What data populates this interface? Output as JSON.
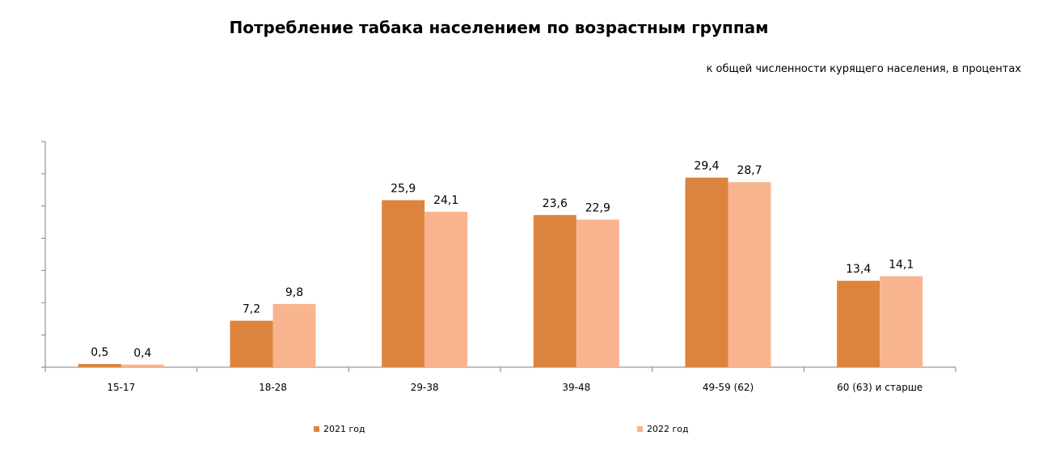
{
  "title": "Потребление табака населением по возрастным группам",
  "subtitle": "к общей численности курящего населения, в процентах",
  "colors": {
    "series_2021": "#DC843E",
    "series_2022": "#F8B48F",
    "axis": "#808080"
  },
  "chart_data": {
    "type": "bar",
    "title": "Потребление табака населением по возрастным группам",
    "subtitle": "к общей численности курящего населения, в процентах",
    "categories": [
      "15-17",
      "18-28",
      "29-38",
      "39-48",
      "49-59 (62)",
      "60 (63) и старше"
    ],
    "series": [
      {
        "name": "2021 год",
        "values": [
          0.5,
          7.2,
          25.9,
          23.6,
          29.4,
          13.4
        ]
      },
      {
        "name": "2022 год",
        "values": [
          0.4,
          9.8,
          24.1,
          22.9,
          28.7,
          14.1
        ]
      }
    ],
    "data_labels": [
      [
        "0,5",
        "7,2",
        "25,9",
        "23,6",
        "29,4",
        "13,4"
      ],
      [
        "0,4",
        "9,8",
        "24,1",
        "22,9",
        "28,7",
        "14,1"
      ]
    ],
    "ylim": [
      0,
      35
    ],
    "ytick_step": 5,
    "y_tick_labels_shown": false,
    "grid": false,
    "legend_position": "bottom"
  }
}
